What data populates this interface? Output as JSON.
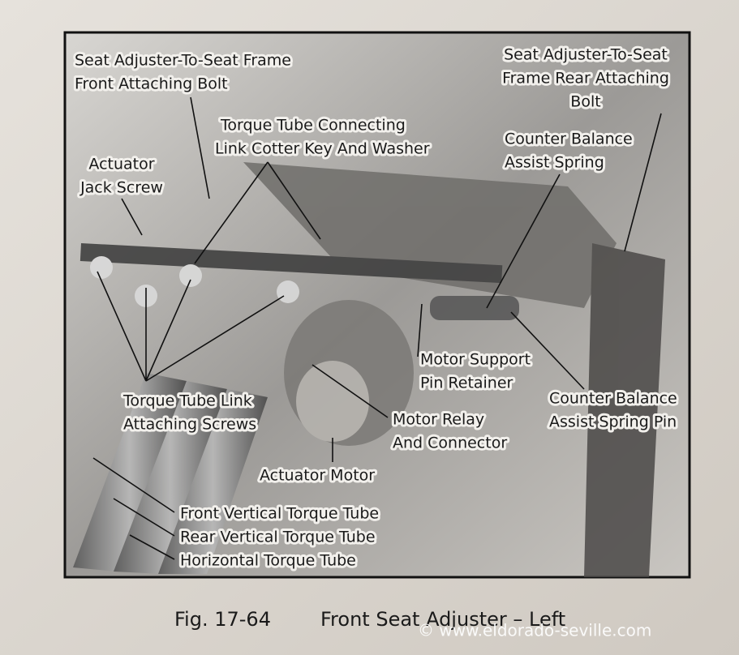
{
  "figure": {
    "labels": [
      {
        "lines": [
          "Seat Adjuster-To-Seat Frame",
          "Front Attaching Bolt"
        ]
      },
      {
        "lines": [
          "Seat Adjuster-To-Seat",
          "Frame Rear Attaching",
          "Bolt"
        ]
      },
      {
        "lines": [
          "Torque Tube Connecting",
          "Link Cotter Key And Washer"
        ]
      },
      {
        "lines": [
          "Counter Balance",
          "Assist Spring"
        ]
      },
      {
        "lines": [
          "Actuator",
          "Jack Screw"
        ]
      },
      {
        "lines": [
          "Motor Support",
          "Pin Retainer"
        ]
      },
      {
        "lines": [
          "Counter Balance",
          "Assist Spring Pin"
        ]
      },
      {
        "lines": [
          "Torque Tube Link",
          "Attaching Screws"
        ]
      },
      {
        "lines": [
          "Motor Relay",
          "And Connector"
        ]
      },
      {
        "lines": [
          "Actuator Motor"
        ]
      },
      {
        "lines": [
          "Front Vertical Torque Tube"
        ]
      },
      {
        "lines": [
          "Rear Vertical Torque Tube"
        ]
      },
      {
        "lines": [
          "Horizontal Torque Tube"
        ]
      }
    ],
    "caption": {
      "number": "Fig. 17-64",
      "title": "Front Seat Adjuster – Left"
    }
  },
  "watermark": "© www.eldorado-seville.com"
}
